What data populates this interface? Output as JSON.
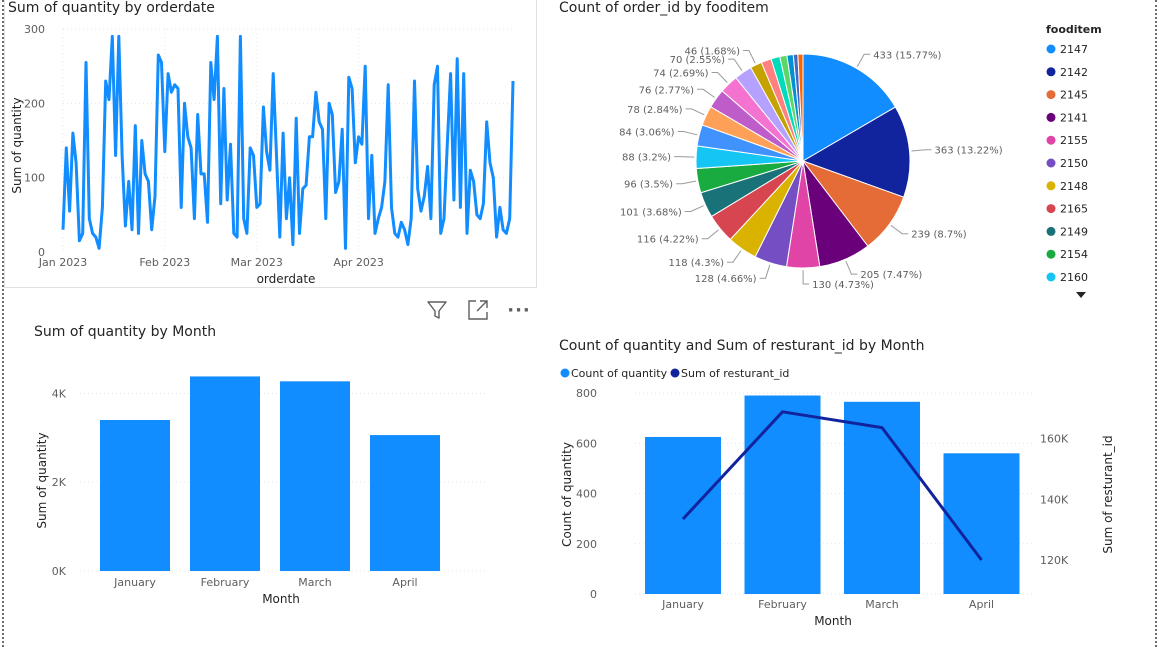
{
  "colors": {
    "primary": "#118DFF",
    "secondary": "#12239E",
    "pie": [
      "#118DFF",
      "#12239E",
      "#E66C37",
      "#6B007B",
      "#E044A7",
      "#744EC2",
      "#D9B300",
      "#D64550",
      "#197278",
      "#1AAB40",
      "#15C6F4",
      "#4092FF",
      "#FFA058",
      "#BE5DC9",
      "#F472D0",
      "#B5A1FF",
      "#C4A200",
      "#FF8080",
      "#00DBBC",
      "#5BD667",
      "#0091D5",
      "#4668C5",
      "#FF6300"
    ]
  },
  "visual_header": {
    "filter_icon": "filter-icon",
    "focus_icon": "focus-mode-icon",
    "more_icon": "more-options-icon",
    "more_label": "···"
  },
  "chart_data": [
    {
      "id": "line",
      "type": "line",
      "title": "Sum of quantity by orderdate",
      "xlabel": "orderdate",
      "ylabel": "Sum of quantity",
      "ylim": [
        0,
        300
      ],
      "yticks": [
        "0",
        "100",
        "200",
        "300"
      ],
      "yticks_values": [
        0,
        100,
        200,
        300
      ],
      "xticks": [
        "Jan 2023",
        "Feb 2023",
        "Mar 2023",
        "Apr 2023"
      ],
      "xticks_index": [
        0,
        31,
        59,
        90
      ],
      "x_start": "2023-01-01",
      "x_end": "2023-04-30",
      "values": [
        30,
        140,
        55,
        160,
        120,
        15,
        25,
        255,
        45,
        25,
        20,
        5,
        60,
        230,
        205,
        290,
        130,
        290,
        130,
        35,
        95,
        30,
        170,
        25,
        150,
        105,
        95,
        30,
        75,
        265,
        255,
        135,
        240,
        215,
        225,
        220,
        60,
        200,
        155,
        140,
        45,
        185,
        105,
        105,
        40,
        255,
        205,
        290,
        65,
        220,
        70,
        145,
        25,
        20,
        290,
        45,
        25,
        140,
        130,
        60,
        65,
        195,
        135,
        110,
        240,
        130,
        20,
        160,
        45,
        100,
        10,
        180,
        25,
        85,
        90,
        155,
        155,
        215,
        175,
        165,
        45,
        200,
        185,
        80,
        95,
        165,
        5,
        235,
        220,
        120,
        155,
        145,
        250,
        45,
        130,
        25,
        45,
        60,
        95,
        225,
        60,
        25,
        20,
        40,
        30,
        10,
        45,
        230,
        85,
        55,
        75,
        115,
        45,
        225,
        250,
        25,
        45,
        145,
        240,
        70,
        260,
        60,
        240,
        25,
        110,
        95,
        50,
        45,
        65,
        175,
        120,
        100,
        20,
        60,
        30,
        25,
        45,
        230
      ]
    },
    {
      "id": "pie",
      "type": "pie",
      "title": "Count of order_id by fooditem",
      "legend_title": "fooditem",
      "legend": [
        "2147",
        "2142",
        "2145",
        "2141",
        "2155",
        "2150",
        "2148",
        "2165",
        "2149",
        "2154",
        "2160"
      ],
      "slices": [
        {
          "label": "433 (15.77%)",
          "value": 433
        },
        {
          "label": "363 (13.22%)",
          "value": 363
        },
        {
          "label": "239 (8.7%)",
          "value": 239
        },
        {
          "label": "205 (7.47%)",
          "value": 205
        },
        {
          "label": "130 (4.73%)",
          "value": 130
        },
        {
          "label": "128 (4.66%)",
          "value": 128
        },
        {
          "label": "118 (4.3%)",
          "value": 118
        },
        {
          "label": "116 (4.22%)",
          "value": 116
        },
        {
          "label": "101 (3.68%)",
          "value": 101
        },
        {
          "label": "96 (3.5%)",
          "value": 96
        },
        {
          "label": "88 (3.2%)",
          "value": 88
        },
        {
          "label": "84 (3.06%)",
          "value": 84
        },
        {
          "label": "78 (2.84%)",
          "value": 78
        },
        {
          "label": "76 (2.77%)",
          "value": 76
        },
        {
          "label": "74 (2.69%)",
          "value": 74
        },
        {
          "label": "70 (2.55%)",
          "value": 70
        },
        {
          "label": "46 (1.68%)",
          "value": 46
        },
        {
          "label": "",
          "value": 40
        },
        {
          "label": "",
          "value": 35
        },
        {
          "label": "",
          "value": 28
        },
        {
          "label": "",
          "value": 25
        },
        {
          "label": "",
          "value": 18
        },
        {
          "label": "",
          "value": 20
        }
      ]
    },
    {
      "id": "bar",
      "type": "bar",
      "title": "Sum of quantity by Month",
      "xlabel": "Month",
      "ylabel": "Sum of quantity",
      "categories": [
        "January",
        "February",
        "March",
        "April"
      ],
      "values": [
        3400,
        4380,
        4270,
        3060
      ],
      "ylim": [
        0,
        4750
      ],
      "yticks": [
        "0K",
        "2K",
        "4K"
      ],
      "yticks_values": [
        0,
        2000,
        4000
      ]
    },
    {
      "id": "combo",
      "type": "bar",
      "title": "Count of quantity and Sum of resturant_id by Month",
      "xlabel": "Month",
      "ylabel": "Count of quantity",
      "y2label": "Sum of resturant_id",
      "categories": [
        "January",
        "February",
        "March",
        "April"
      ],
      "series": [
        {
          "name": "Count of quantity",
          "type": "bar",
          "values": [
            625,
            790,
            765,
            560
          ]
        },
        {
          "name": "Sum of resturant_id",
          "type": "line",
          "values": [
            133500,
            168800,
            163600,
            120000
          ]
        }
      ],
      "ylim": [
        0,
        800
      ],
      "yticks": [
        "0",
        "200",
        "400",
        "600",
        "800"
      ],
      "yticks_values": [
        0,
        200,
        400,
        600,
        800
      ],
      "y2lim": [
        108800,
        175000
      ],
      "y2ticks": [
        "120K",
        "140K",
        "160K"
      ],
      "y2ticks_values": [
        120000,
        140000,
        160000
      ]
    }
  ]
}
